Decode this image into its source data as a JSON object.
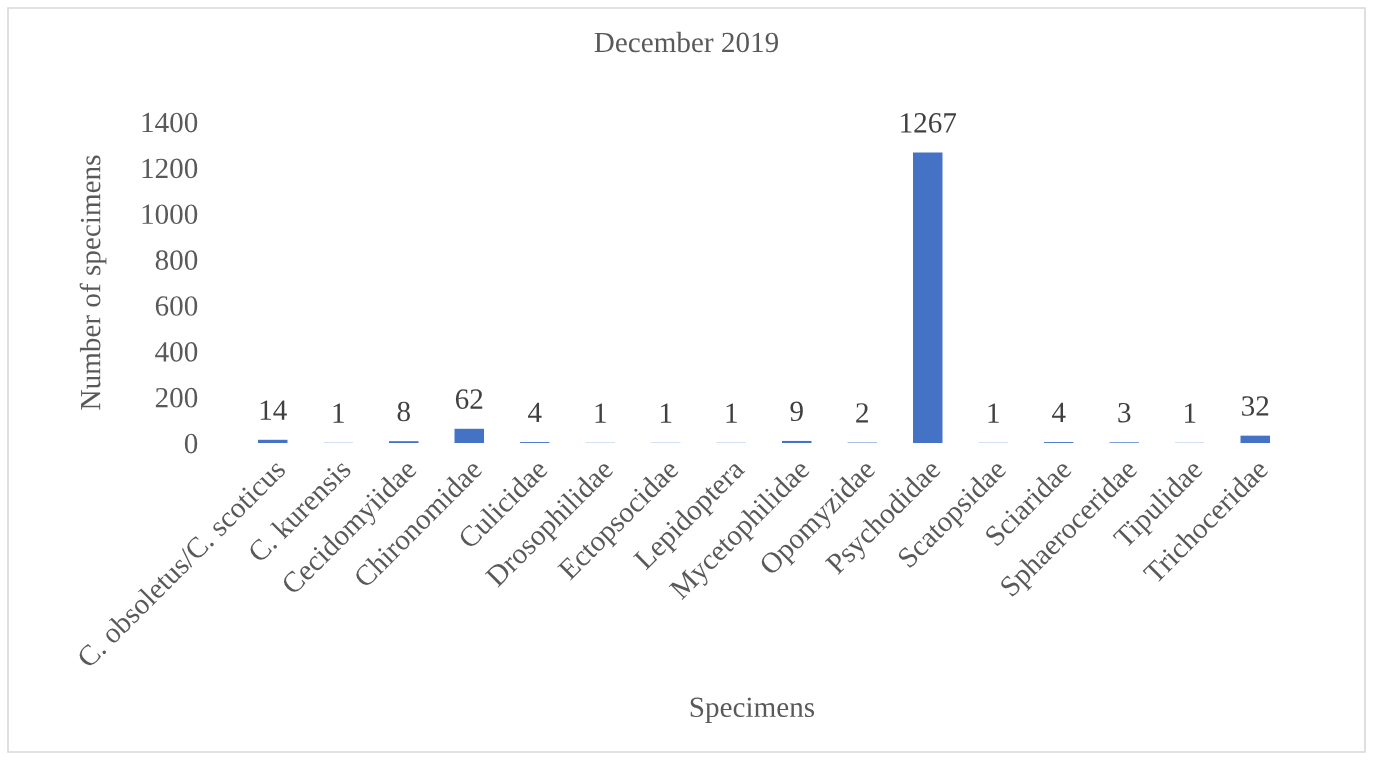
{
  "chart_data": {
    "type": "bar",
    "title": "December 2019",
    "xlabel": "Specimens",
    "ylabel": "Number of specimens",
    "categories": [
      "C. obsoletus/C. scoticus",
      "C. kurensis",
      "Cecidomyiidae",
      "Chironomidae",
      "Culicidae",
      "Drosophilidae",
      "Ectopsocidae",
      "Lepidoptera",
      "Mycetophilidae",
      "Opomyzidae",
      "Psychodidae",
      "Scatopsidae",
      "Sciaridae",
      "Sphaeroceridae",
      "Tipulidae",
      "Trichoceridae"
    ],
    "values": [
      14,
      1,
      8,
      62,
      4,
      1,
      1,
      1,
      9,
      2,
      1267,
      1,
      4,
      3,
      1,
      32
    ],
    "color": "#4472c4",
    "ylim": [
      0,
      1400
    ],
    "yticks": [
      0,
      200,
      400,
      600,
      800,
      1000,
      1200,
      1400
    ],
    "data_labels": true
  }
}
